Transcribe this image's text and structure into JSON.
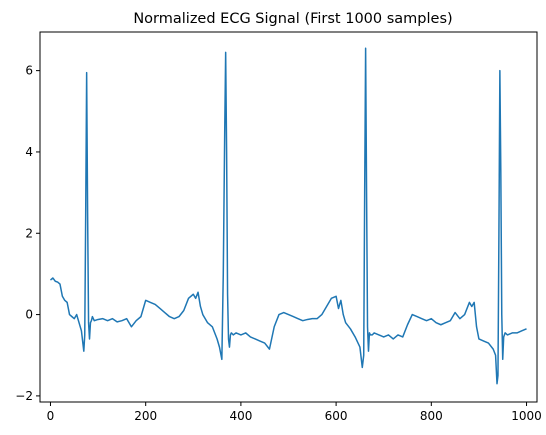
{
  "chart_data": {
    "type": "line",
    "title": "Normalized ECG Signal (First 1000 samples)",
    "xlabel": "",
    "ylabel": "",
    "xlim": [
      -22,
      1022
    ],
    "ylim": [
      -2.15,
      6.95
    ],
    "x_ticks": [
      0,
      200,
      400,
      600,
      800,
      1000
    ],
    "x_tick_labels": [
      "0",
      "200",
      "400",
      "600",
      "800",
      "1000"
    ],
    "y_ticks": [
      -2,
      0,
      2,
      4,
      6
    ],
    "y_tick_labels": [
      "−2",
      "0",
      "2",
      "4",
      "6"
    ],
    "grid": false,
    "legend": "none",
    "line_color": "#1f77b4",
    "series": [
      {
        "x": [
          0,
          5,
          10,
          15,
          20,
          25,
          30,
          35,
          40,
          45,
          50,
          55,
          60,
          65,
          70,
          72,
          74,
          76,
          78,
          80,
          82,
          84,
          86,
          88,
          92,
          100,
          110,
          120,
          130,
          140,
          150,
          160,
          170,
          180,
          190,
          200,
          210,
          220,
          230,
          240,
          250,
          260,
          270,
          280,
          290,
          300,
          305,
          310,
          315,
          320,
          330,
          340,
          350,
          355,
          360,
          363,
          366,
          368,
          370,
          372,
          374,
          376,
          378,
          380,
          384,
          390,
          400,
          410,
          420,
          430,
          440,
          450,
          460,
          470,
          480,
          490,
          500,
          510,
          520,
          530,
          540,
          550,
          560,
          570,
          580,
          590,
          600,
          605,
          610,
          615,
          620,
          630,
          640,
          650,
          655,
          658,
          660,
          662,
          664,
          666,
          668,
          670,
          672,
          676,
          680,
          690,
          700,
          710,
          720,
          730,
          740,
          750,
          760,
          770,
          780,
          790,
          800,
          810,
          820,
          830,
          840,
          850,
          860,
          870,
          880,
          885,
          890,
          895,
          900,
          910,
          920,
          930,
          935,
          938,
          940,
          942,
          944,
          946,
          948,
          950,
          952,
          955,
          960,
          970,
          980,
          990,
          1000
        ],
        "y": [
          0.85,
          0.9,
          0.82,
          0.8,
          0.75,
          0.45,
          0.35,
          0.3,
          0.0,
          -0.05,
          -0.1,
          0.0,
          -0.2,
          -0.4,
          -0.9,
          -0.5,
          2.5,
          5.95,
          2.5,
          -0.2,
          -0.6,
          -0.2,
          -0.15,
          -0.05,
          -0.15,
          -0.12,
          -0.1,
          -0.15,
          -0.1,
          -0.18,
          -0.15,
          -0.1,
          -0.3,
          -0.15,
          -0.05,
          0.35,
          0.3,
          0.25,
          0.15,
          0.05,
          -0.05,
          -0.1,
          -0.05,
          0.1,
          0.4,
          0.5,
          0.4,
          0.55,
          0.2,
          0.0,
          -0.2,
          -0.3,
          -0.6,
          -0.8,
          -1.1,
          1.0,
          4.5,
          6.45,
          4.0,
          0.5,
          -0.6,
          -0.8,
          -0.5,
          -0.45,
          -0.5,
          -0.45,
          -0.5,
          -0.45,
          -0.55,
          -0.6,
          -0.65,
          -0.7,
          -0.85,
          -0.3,
          0.0,
          0.05,
          0.0,
          -0.05,
          -0.1,
          -0.15,
          -0.12,
          -0.1,
          -0.1,
          0.0,
          0.2,
          0.4,
          0.45,
          0.15,
          0.35,
          0.0,
          -0.2,
          -0.35,
          -0.55,
          -0.8,
          -1.3,
          -1.0,
          3.0,
          6.55,
          3.0,
          -0.3,
          -0.9,
          -0.45,
          -0.5,
          -0.5,
          -0.45,
          -0.5,
          -0.55,
          -0.5,
          -0.6,
          -0.5,
          -0.55,
          -0.25,
          0.0,
          -0.05,
          -0.1,
          -0.15,
          -0.1,
          -0.2,
          -0.25,
          -0.2,
          -0.15,
          0.05,
          -0.1,
          0.0,
          0.3,
          0.2,
          0.3,
          -0.3,
          -0.6,
          -0.65,
          -0.7,
          -0.85,
          -1.0,
          -1.7,
          -1.5,
          2.0,
          6.0,
          3.5,
          0.0,
          -1.1,
          -0.55,
          -0.45,
          -0.5,
          -0.45,
          -0.45,
          -0.4,
          -0.35
        ]
      }
    ]
  }
}
